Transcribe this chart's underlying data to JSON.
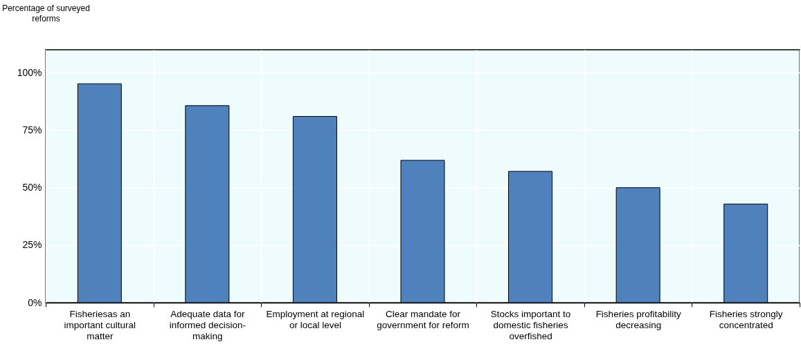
{
  "chart_data": {
    "type": "bar",
    "ylabel": "Percentage of surveyed reforms",
    "categories": [
      "Fisheriesas an important cultural matter",
      "Adequate data for informed decision-making",
      "Employment at regional or local level",
      "Clear mandate for government for reform",
      "Stocks important to domestic fisheries overfished",
      "Fisheries profitability decreasing",
      "Fisheries strongly concentrated"
    ],
    "values": [
      95.2,
      85.7,
      81.0,
      61.9,
      57.1,
      50.0,
      42.9
    ],
    "color": "#4f81bd",
    "ylim": [
      0,
      110
    ],
    "yticks": [
      {
        "value": 0,
        "label": "0%"
      },
      {
        "value": 25,
        "label": "25%"
      },
      {
        "value": 50,
        "label": "50%"
      },
      {
        "value": 75,
        "label": "75%"
      },
      {
        "value": 100,
        "label": "100%"
      }
    ],
    "grid": true
  }
}
